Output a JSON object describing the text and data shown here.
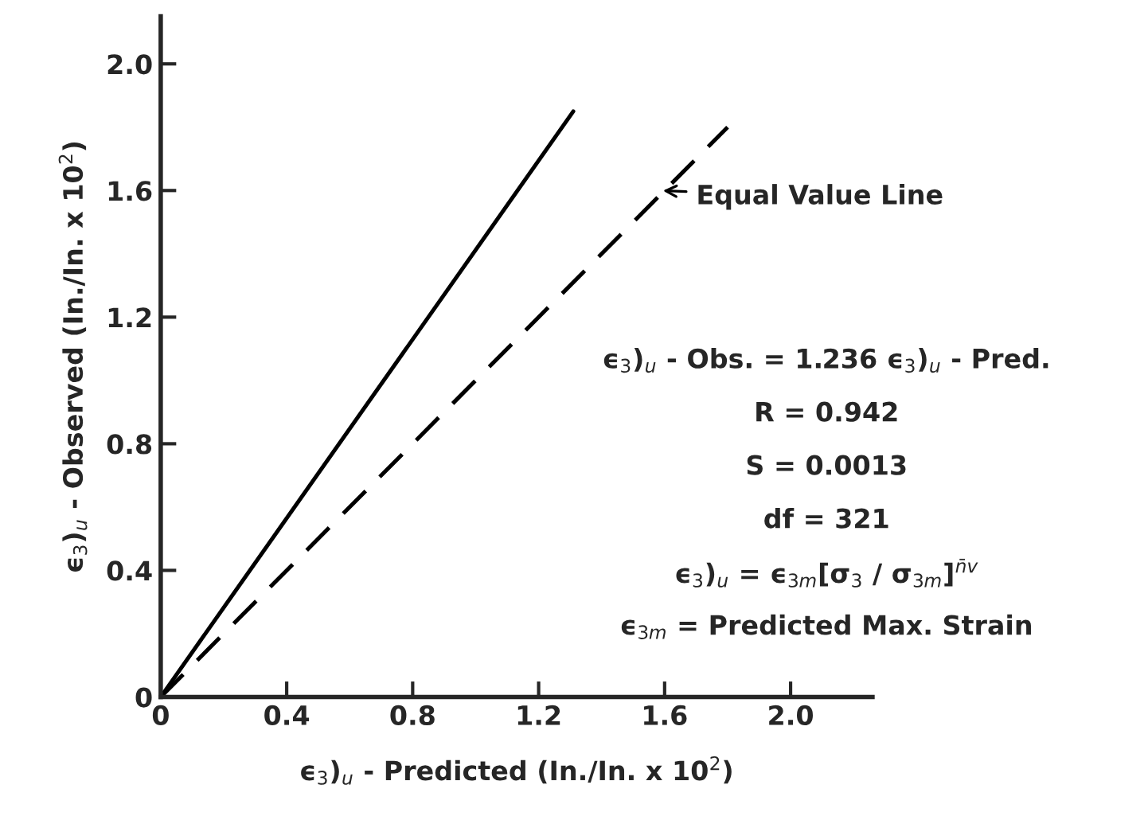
{
  "chart_data": {
    "type": "line",
    "xlabel": "ϵ$_{3}$)$_{u}$ - Predicted (In./In. x 10$^{2}$)",
    "ylabel": "ϵ$_{3}$)$_{u}$ - Observed (In./In. x 10$^{2}$)",
    "series": [
      {
        "x": [
          0,
          1.31
        ],
        "values": [
          0,
          1.85
        ],
        "color": "#000000",
        "line_style": "solid"
      },
      {
        "x": [
          0,
          1.8
        ],
        "values": [
          0,
          1.8
        ],
        "color": "#000000",
        "line_style": "dashed"
      }
    ],
    "annotations": [
      {
        "text": "Equal Value Line",
        "x": 1.58,
        "y": 1.6
      },
      "ϵ$_{3}$)$_{u}$ - Obs. = 1.236 ϵ$_{3}$)$_{u}$ - Pred.",
      "R = 0.942",
      "S = 0.0013",
      "df = 321",
      "ϵ$_{3}$)$_{u}$ = ϵ$_{3m}$[σ$_{3}$ / σ$_{3m}$]$^{n̄v}$",
      "ϵ$_{3m}$ = Predicted Max. Strain"
    ],
    "xlim": [
      0,
      2.26
    ],
    "ylim": [
      0,
      2.15
    ],
    "xticks": [
      0,
      0.4,
      0.8,
      1.2,
      1.6,
      {
        "value": 2,
        "label": "2.0"
      }
    ],
    "yticks": [
      0,
      0.4,
      0.8,
      1.2,
      1.6,
      {
        "value": 2,
        "label": "2.0"
      }
    ],
    "grid": false,
    "legend": false
  }
}
